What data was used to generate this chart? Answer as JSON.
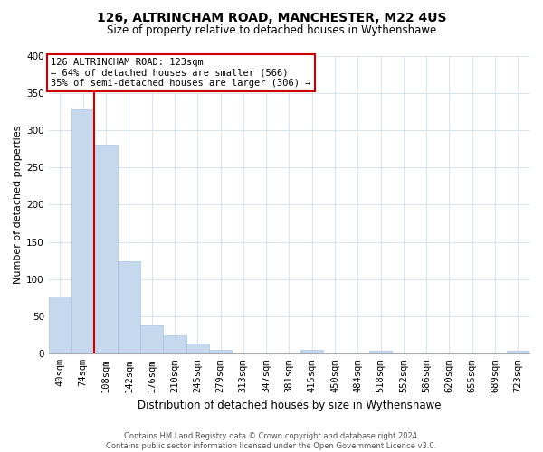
{
  "title": "126, ALTRINCHAM ROAD, MANCHESTER, M22 4US",
  "subtitle": "Size of property relative to detached houses in Wythenshawe",
  "xlabel": "Distribution of detached houses by size in Wythenshawe",
  "ylabel": "Number of detached properties",
  "footer_line1": "Contains HM Land Registry data © Crown copyright and database right 2024.",
  "footer_line2": "Contains public sector information licensed under the Open Government Licence v3.0.",
  "bin_labels": [
    "40sqm",
    "74sqm",
    "108sqm",
    "142sqm",
    "176sqm",
    "210sqm",
    "245sqm",
    "279sqm",
    "313sqm",
    "347sqm",
    "381sqm",
    "415sqm",
    "450sqm",
    "484sqm",
    "518sqm",
    "552sqm",
    "586sqm",
    "620sqm",
    "655sqm",
    "689sqm",
    "723sqm"
  ],
  "bar_heights": [
    77,
    328,
    281,
    124,
    38,
    25,
    14,
    5,
    0,
    0,
    0,
    5,
    0,
    0,
    4,
    0,
    0,
    0,
    0,
    0,
    4
  ],
  "bar_color": "#c5d8ee",
  "bar_edge_color": "#a8c4e0",
  "property_line_x": 2.0,
  "annotation_text_line1": "126 ALTRINCHAM ROAD: 123sqm",
  "annotation_text_line2": "← 64% of detached houses are smaller (566)",
  "annotation_text_line3": "35% of semi-detached houses are larger (306) →",
  "ylim": [
    0,
    400
  ],
  "yticks": [
    0,
    50,
    100,
    150,
    200,
    250,
    300,
    350,
    400
  ],
  "grid_color": "#d8e4f0",
  "background_color": "#ffffff",
  "line_color": "#cc0000",
  "title_fontsize": 10,
  "subtitle_fontsize": 8.5,
  "axis_label_fontsize": 8,
  "tick_fontsize": 7.5,
  "annotation_fontsize": 7.5,
  "footer_fontsize": 6
}
